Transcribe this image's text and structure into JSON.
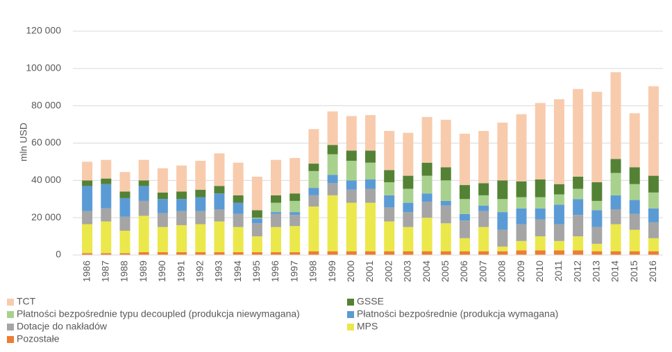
{
  "chart_data": {
    "type": "stacked_bar",
    "y_label": "mln USD",
    "categories": [
      "1986",
      "1987",
      "1988",
      "1989",
      "1990",
      "1991",
      "1992",
      "1993",
      "1994",
      "1995",
      "1996",
      "1997",
      "1998",
      "1999",
      "2000",
      "2001",
      "2002",
      "2003",
      "2004",
      "2005",
      "2006",
      "2007",
      "2008",
      "2009",
      "2010",
      "2011",
      "2012",
      "2013",
      "2014",
      "2015",
      "2016"
    ],
    "ylim": [
      0,
      120000
    ],
    "yticks": [
      {
        "value": 0,
        "label": "0"
      },
      {
        "value": 20000,
        "label": "20 000"
      },
      {
        "value": 40000,
        "label": "40 000"
      },
      {
        "value": 60000,
        "label": "60 000"
      },
      {
        "value": 80000,
        "label": "80 000"
      },
      {
        "value": 100000,
        "label": "100 000"
      },
      {
        "value": 120000,
        "label": "120 000"
      }
    ],
    "grid": true,
    "legend": "bottom",
    "series": [
      {
        "name": "TCT",
        "color": "#f8cbad",
        "values": [
          10000,
          10000,
          10500,
          11000,
          13000,
          14000,
          15500,
          17500,
          17500,
          18000,
          19000,
          19000,
          18500,
          18000,
          18500,
          19000,
          21000,
          23000,
          24500,
          25500,
          27500,
          28000,
          31000,
          36000,
          41000,
          45500,
          47000,
          48500,
          46500,
          29000,
          48000
        ]
      },
      {
        "name": "GSSE",
        "color": "#548235",
        "values": [
          3000,
          3000,
          3500,
          3000,
          3500,
          4000,
          4000,
          4000,
          4000,
          4000,
          4000,
          4000,
          4000,
          5000,
          5500,
          6500,
          6500,
          7000,
          7000,
          7000,
          7500,
          6500,
          10000,
          8500,
          9500,
          5500,
          6500,
          10000,
          7500,
          9000,
          9000
        ]
      },
      {
        "name": "Płatności bezpośrednie typu decoupled (produkcja niewymagana)",
        "color": "#a9d18e",
        "values": [
          0,
          0,
          0,
          0,
          0,
          0,
          0,
          0,
          0,
          500,
          5000,
          6000,
          9000,
          11000,
          10500,
          9000,
          7000,
          7500,
          9500,
          11000,
          8000,
          5500,
          7000,
          6000,
          6000,
          5500,
          5500,
          5000,
          12000,
          8500,
          8500
        ]
      },
      {
        "name": "Płatności bezpośrednie (produkcja wymagana)",
        "color": "#5b9bd5",
        "values": [
          13500,
          13000,
          10000,
          8000,
          7500,
          6500,
          7500,
          8500,
          6000,
          2500,
          1000,
          1500,
          4000,
          4500,
          5000,
          5000,
          6500,
          5000,
          4500,
          2500,
          3500,
          3000,
          9500,
          8500,
          6000,
          10500,
          8500,
          9000,
          7500,
          7500,
          7500
        ]
      },
      {
        "name": "Dotacje do nakładów",
        "color": "#a5a5a5",
        "values": [
          7000,
          7000,
          7500,
          8000,
          7500,
          7500,
          7000,
          6500,
          7000,
          7000,
          7000,
          6000,
          6000,
          6500,
          7000,
          7500,
          7500,
          8000,
          8500,
          9500,
          9500,
          8500,
          9000,
          9000,
          9000,
          9000,
          11500,
          9000,
          8000,
          8500,
          8500
        ]
      },
      {
        "name": "MPS",
        "color": "#ebe84b",
        "values": [
          15500,
          17000,
          12000,
          19500,
          13500,
          14500,
          15000,
          16500,
          13500,
          8500,
          13500,
          14000,
          24000,
          30000,
          26000,
          26000,
          16000,
          13000,
          18000,
          15000,
          7000,
          13000,
          2500,
          5000,
          7500,
          5000,
          7500,
          4000,
          14500,
          11500,
          7000
        ]
      },
      {
        "name": "Pozostałe",
        "color": "#ed7d31",
        "values": [
          1000,
          1000,
          1000,
          1500,
          1500,
          1500,
          1500,
          1500,
          1500,
          1500,
          1500,
          1500,
          2000,
          2000,
          2000,
          2000,
          2000,
          2000,
          2000,
          2000,
          2000,
          2000,
          2000,
          2500,
          2500,
          2500,
          2500,
          2000,
          2000,
          2000,
          2000
        ]
      }
    ]
  }
}
